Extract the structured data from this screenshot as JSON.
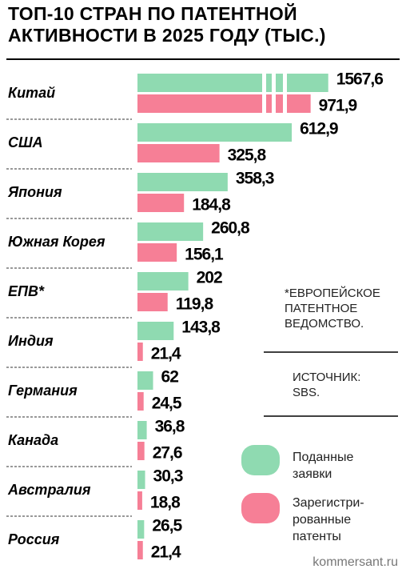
{
  "chart_data": {
    "type": "bar",
    "orientation": "horizontal",
    "title": "ТОП-10 СТРАН ПО ПАТЕНТНОЙ АКТИВНОСТИ В 2025 ГОДУ (ТЫС.)",
    "categories": [
      "Китай",
      "США",
      "Япония",
      "Южная Корея",
      "ЕПВ*",
      "Индия",
      "Германия",
      "Канада",
      "Австралия",
      "Россия"
    ],
    "series": [
      {
        "name": "Поданные заявки",
        "color": "#8fdab1",
        "values": [
          1567.6,
          612.9,
          358.3,
          260.8,
          202,
          143.8,
          62,
          36.8,
          30.3,
          26.5
        ],
        "value_labels": [
          "1567,6",
          "612,9",
          "358,3",
          "260,8",
          "202",
          "143,8",
          "62",
          "36,8",
          "30,3",
          "26,5"
        ]
      },
      {
        "name": "Зарегистри-рованные патенты",
        "color": "#f67f96",
        "values": [
          971.9,
          325.8,
          184.8,
          156.1,
          119.8,
          21.4,
          24.5,
          27.6,
          18.8,
          21.4
        ],
        "value_labels": [
          "971,9",
          "325,8",
          "184,8",
          "156,1",
          "119,8",
          "21,4",
          "24,5",
          "27,6",
          "18,8",
          "21,4"
        ]
      }
    ],
    "notes": [
      "*ЕВРОПЕЙСКОЕ ПАТЕНТНОЕ ВЕДОМСТВО.",
      "ИСТОЧНИК: SBS."
    ],
    "source": "kommersant.ru"
  }
}
